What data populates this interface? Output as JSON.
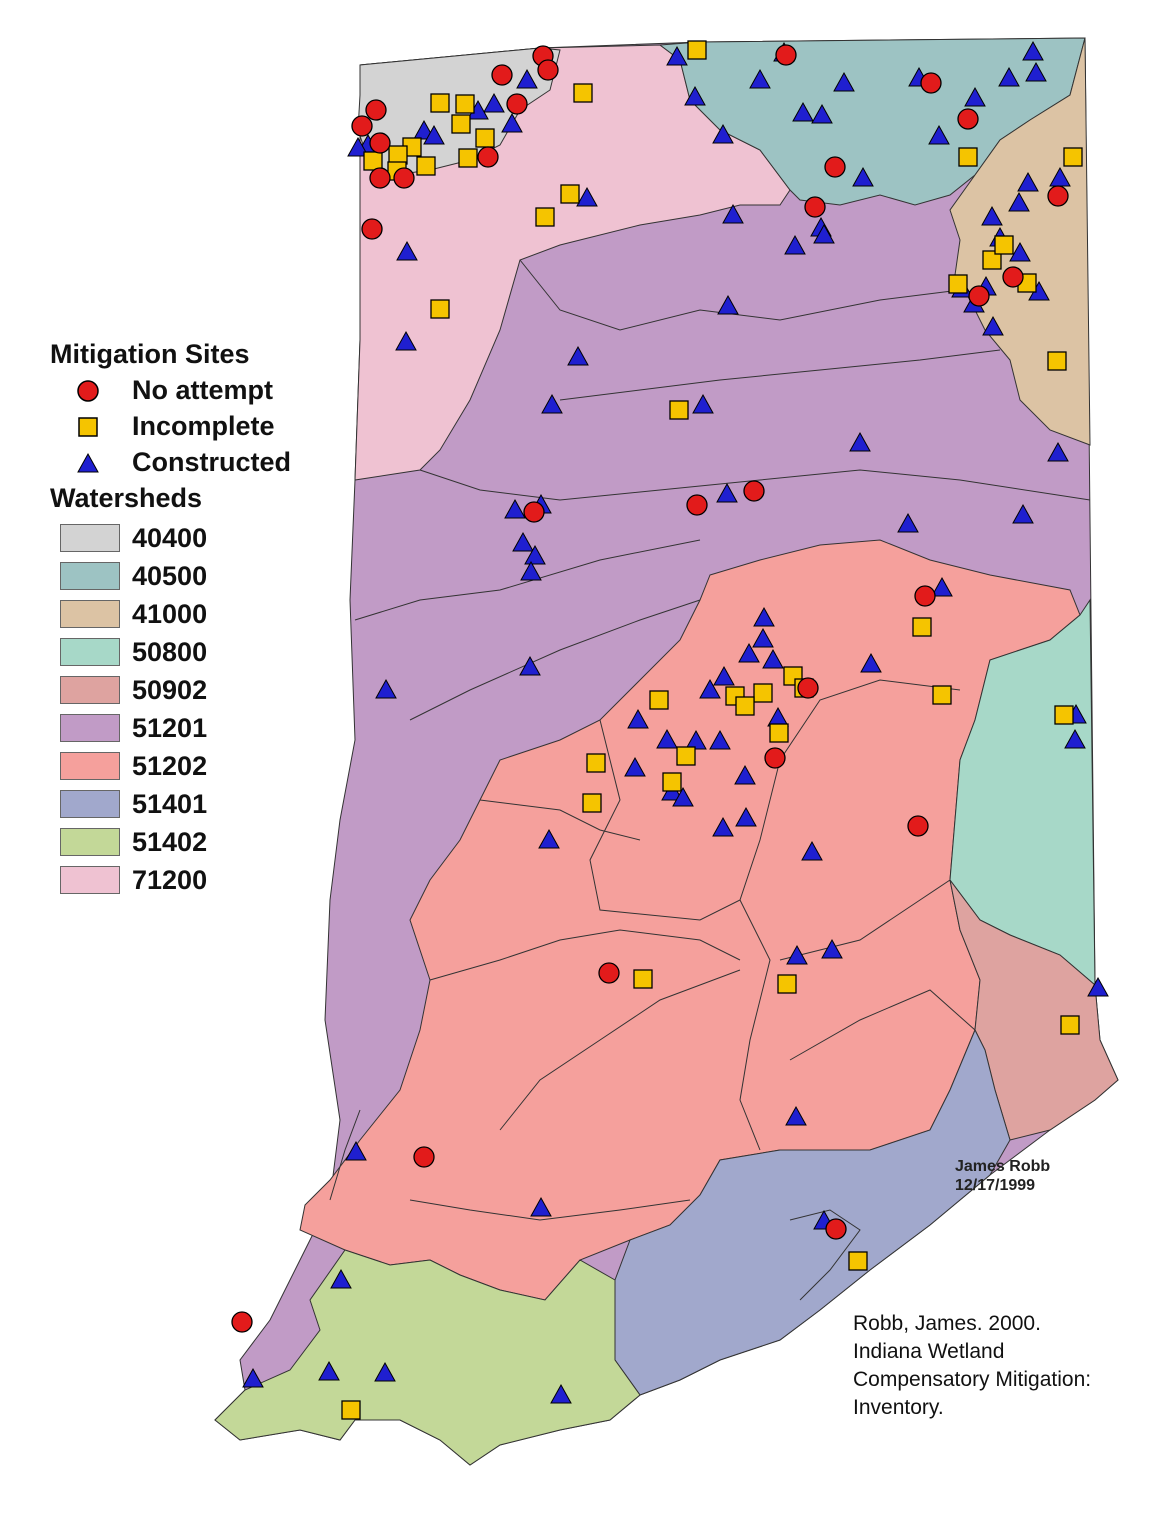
{
  "legend": {
    "sites_title": "Mitigation Sites",
    "sites": [
      {
        "label": "No attempt",
        "symbol": "circle",
        "color": "#e21b1b"
      },
      {
        "label": "Incomplete",
        "symbol": "square",
        "color": "#f5c400"
      },
      {
        "label": "Constructed",
        "symbol": "triangle",
        "color": "#1f1fd0"
      }
    ],
    "watersheds_title": "Watersheds",
    "watersheds": [
      {
        "code": "40400",
        "color": "#d3d3d3"
      },
      {
        "code": "40500",
        "color": "#9dc3c3"
      },
      {
        "code": "41000",
        "color": "#dcc3a4"
      },
      {
        "code": "50800",
        "color": "#a7d8c8"
      },
      {
        "code": "50902",
        "color": "#dea3a0"
      },
      {
        "code": "51201",
        "color": "#c19bc6"
      },
      {
        "code": "51202",
        "color": "#f5a09c"
      },
      {
        "code": "51401",
        "color": "#a1a8cc"
      },
      {
        "code": "51402",
        "color": "#c3d898"
      },
      {
        "code": "71200",
        "color": "#efc2d2"
      }
    ]
  },
  "author": {
    "name": "James Robb",
    "date": "12/17/1999"
  },
  "citation": {
    "line1": "Robb, James.  2000.",
    "line2": "Indiana Wetland",
    "line3": "Compensatory Mitigation:",
    "line4": "Inventory."
  }
}
